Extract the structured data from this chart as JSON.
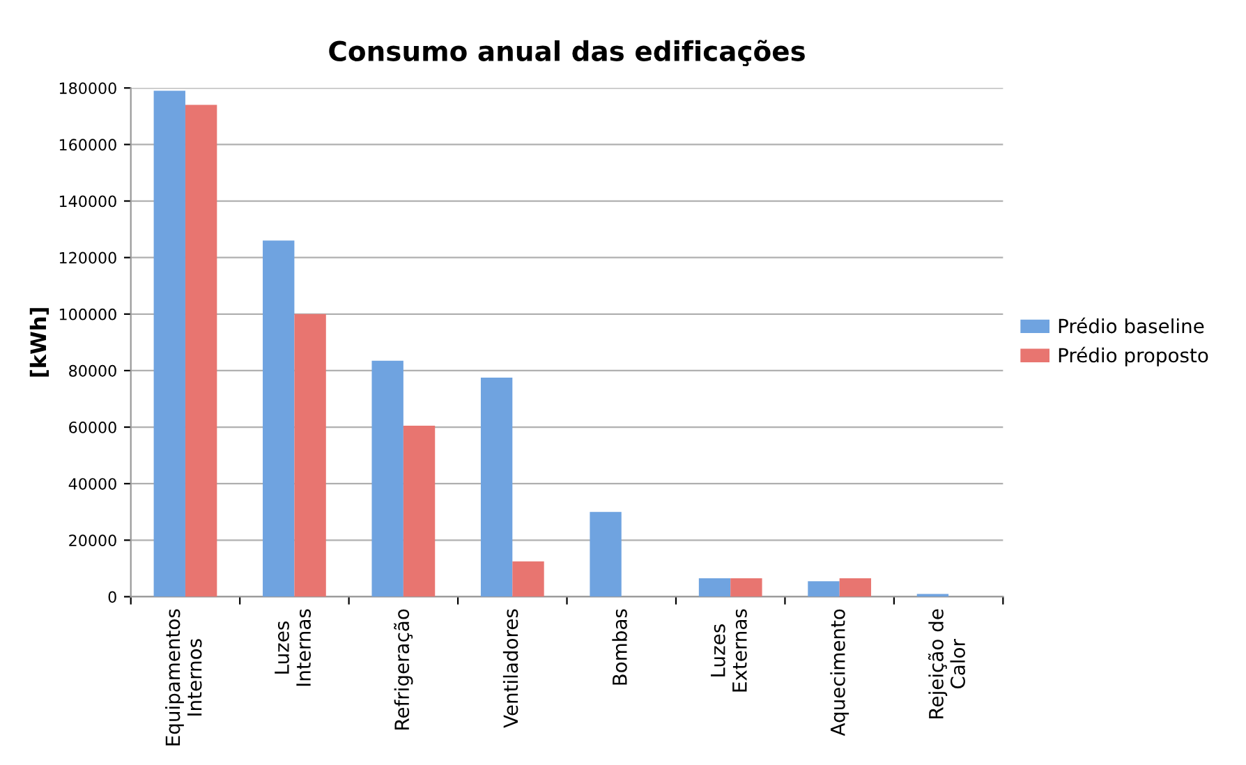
{
  "chart_data": {
    "type": "bar",
    "title": "Consumo anual das edificações",
    "ylabel": "[kWh]",
    "categories": [
      "Equipamentos\nInternos",
      "Luzes\nInternas",
      "Refrigeração",
      "Ventiladores",
      "Bombas",
      "Luzes\nExternas",
      "Aquecimento",
      "Rejeição de\nCalor"
    ],
    "series": [
      {
        "name": "Prédio baseline",
        "color": "#6fa3e0",
        "values": [
          179000,
          126000,
          83500,
          77500,
          30000,
          6500,
          5500,
          1000
        ]
      },
      {
        "name": "Prédio proposto",
        "color": "#e87570",
        "values": [
          174000,
          100000,
          60500,
          12500,
          0,
          6500,
          6500,
          0
        ]
      }
    ],
    "ylim": [
      0,
      180000
    ],
    "yticks": [
      0,
      20000,
      40000,
      60000,
      80000,
      100000,
      120000,
      140000,
      160000,
      180000
    ],
    "grid": "y",
    "legend": "right"
  }
}
